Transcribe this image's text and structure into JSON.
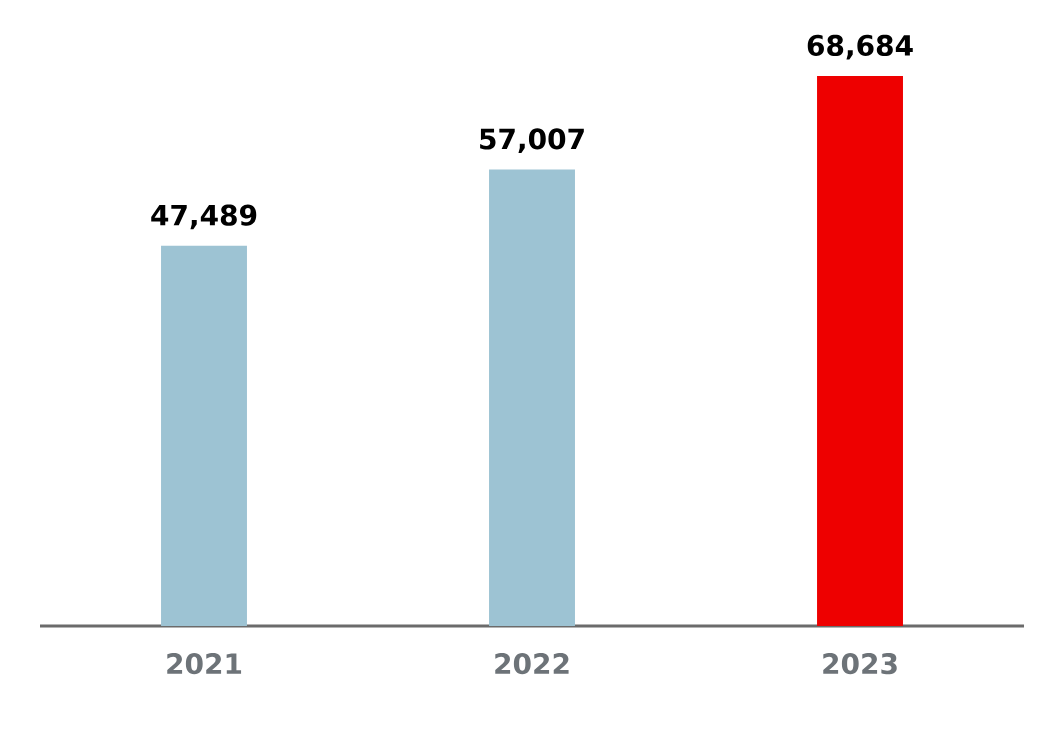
{
  "chart_data": {
    "type": "bar",
    "categories": [
      "2021",
      "2022",
      "2023"
    ],
    "values": [
      47489,
      57007,
      68684
    ],
    "colors": [
      "#9dc3d3",
      "#9dc3d3",
      "#ee0000"
    ],
    "value_labels": [
      "47,489",
      "57,007",
      "68,684"
    ]
  }
}
